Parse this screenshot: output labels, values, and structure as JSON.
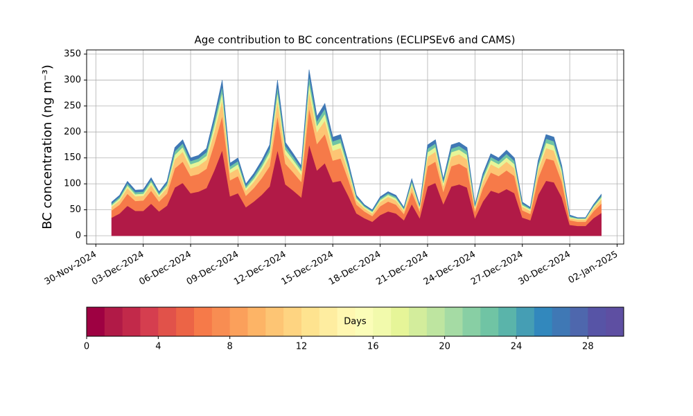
{
  "chart_data": {
    "type": "stacked_area",
    "title": "Age contribution to BC concentrations (ECLIPSEv6 and CAMS)",
    "y_label": "BC concentration (ng m⁻³)",
    "x": [
      "2024-12-01T00:00",
      "2024-12-01T12:00",
      "2024-12-02T00:00",
      "2024-12-02T12:00",
      "2024-12-03T00:00",
      "2024-12-03T12:00",
      "2024-12-04T00:00",
      "2024-12-04T12:00",
      "2024-12-05T00:00",
      "2024-12-05T12:00",
      "2024-12-06T00:00",
      "2024-12-06T12:00",
      "2024-12-07T00:00",
      "2024-12-07T12:00",
      "2024-12-08T00:00",
      "2024-12-08T12:00",
      "2024-12-09T00:00",
      "2024-12-09T12:00",
      "2024-12-10T00:00",
      "2024-12-10T12:00",
      "2024-12-11T00:00",
      "2024-12-11T12:00",
      "2024-12-12T00:00",
      "2024-12-12T12:00",
      "2024-12-13T00:00",
      "2024-12-13T12:00",
      "2024-12-14T00:00",
      "2024-12-14T12:00",
      "2024-12-15T00:00",
      "2024-12-15T12:00",
      "2024-12-16T00:00",
      "2024-12-16T12:00",
      "2024-12-17T00:00",
      "2024-12-17T12:00",
      "2024-12-18T00:00",
      "2024-12-18T12:00",
      "2024-12-19T00:00",
      "2024-12-19T12:00",
      "2024-12-20T00:00",
      "2024-12-20T12:00",
      "2024-12-21T00:00",
      "2024-12-21T12:00",
      "2024-12-22T00:00",
      "2024-12-22T12:00",
      "2024-12-23T00:00",
      "2024-12-23T12:00",
      "2024-12-24T00:00",
      "2024-12-24T12:00",
      "2024-12-25T00:00",
      "2024-12-25T12:00",
      "2024-12-26T00:00",
      "2024-12-26T12:00",
      "2024-12-27T00:00",
      "2024-12-27T12:00",
      "2024-12-28T00:00",
      "2024-12-28T12:00",
      "2024-12-29T00:00",
      "2024-12-29T12:00",
      "2024-12-30T00:00",
      "2024-12-30T12:00",
      "2024-12-31T00:00",
      "2024-12-31T12:00",
      "2025-01-01T00:00"
    ],
    "series": [
      {
        "color": "#b11a47",
        "values": [
          35,
          43,
          58,
          48,
          48,
          62,
          47,
          58,
          93,
          102,
          82,
          85,
          92,
          126,
          165,
          76,
          82,
          55,
          66,
          79,
          95,
          165,
          99,
          87,
          74,
          176,
          126,
          140,
          103,
          106,
          76,
          43,
          34,
          27,
          40,
          47,
          43,
          30,
          61,
          34,
          95,
          102,
          61,
          95,
          99,
          93,
          34,
          66,
          87,
          82,
          90,
          82,
          35,
          30,
          79,
          106,
          103,
          74,
          21,
          19,
          19,
          34,
          44
        ]
      },
      {
        "color": "#f67a49",
        "values": [
          14,
          17,
          23,
          19,
          20,
          25,
          19,
          23,
          37,
          41,
          33,
          34,
          37,
          51,
          66,
          31,
          33,
          22,
          26,
          32,
          39,
          66,
          40,
          35,
          30,
          70,
          51,
          56,
          42,
          43,
          31,
          17,
          13,
          11,
          17,
          19,
          17,
          12,
          24,
          13,
          39,
          41,
          24,
          39,
          40,
          37,
          13,
          26,
          35,
          33,
          36,
          33,
          14,
          12,
          32,
          43,
          42,
          30,
          9,
          8,
          8,
          13,
          18
        ]
      },
      {
        "color": "#fdc574",
        "values": [
          7,
          8,
          11,
          9,
          9,
          11,
          9,
          11,
          17,
          19,
          15,
          16,
          17,
          23,
          30,
          14,
          15,
          10,
          12,
          15,
          18,
          30,
          18,
          16,
          14,
          32,
          23,
          26,
          19,
          20,
          14,
          8,
          6,
          5,
          8,
          9,
          8,
          6,
          11,
          6,
          18,
          19,
          11,
          18,
          18,
          17,
          6,
          12,
          16,
          15,
          17,
          15,
          7,
          6,
          15,
          20,
          19,
          14,
          4,
          4,
          4,
          6,
          8
        ]
      },
      {
        "color": "#e6f598",
        "values": [
          3,
          4,
          5,
          4,
          4,
          6,
          4,
          5,
          9,
          9,
          8,
          8,
          8,
          12,
          15,
          7,
          8,
          5,
          6,
          7,
          9,
          15,
          9,
          8,
          7,
          16,
          12,
          13,
          10,
          10,
          7,
          4,
          3,
          3,
          4,
          4,
          4,
          3,
          6,
          3,
          9,
          9,
          6,
          9,
          9,
          9,
          3,
          6,
          8,
          8,
          8,
          8,
          3,
          3,
          7,
          10,
          10,
          7,
          2,
          2,
          2,
          3,
          4
        ]
      },
      {
        "color": "#70c4a4",
        "values": [
          3,
          3,
          4,
          4,
          4,
          4,
          3,
          4,
          7,
          7,
          6,
          6,
          7,
          9,
          12,
          6,
          6,
          4,
          5,
          6,
          7,
          12,
          7,
          6,
          5,
          13,
          9,
          10,
          8,
          8,
          6,
          3,
          2,
          2,
          3,
          3,
          3,
          2,
          4,
          2,
          7,
          7,
          4,
          7,
          7,
          7,
          2,
          5,
          6,
          6,
          7,
          6,
          3,
          2,
          6,
          8,
          8,
          5,
          2,
          1,
          1,
          2,
          3
        ]
      },
      {
        "color": "#3f78b5",
        "values": [
          3,
          3,
          4,
          4,
          4,
          4,
          3,
          4,
          7,
          7,
          6,
          6,
          7,
          9,
          12,
          6,
          6,
          4,
          5,
          6,
          7,
          12,
          7,
          6,
          5,
          13,
          9,
          10,
          8,
          8,
          6,
          3,
          2,
          2,
          3,
          3,
          3,
          2,
          4,
          2,
          7,
          7,
          4,
          7,
          7,
          7,
          2,
          5,
          6,
          6,
          7,
          6,
          3,
          2,
          6,
          8,
          8,
          5,
          2,
          1,
          1,
          2,
          3
        ]
      }
    ],
    "xlim": [
      "2024-11-29T10:00",
      "2025-01-02T10:00"
    ],
    "xticks": [
      {
        "value": "2024-11-30T00:00",
        "label": "30-Nov-2024"
      },
      {
        "value": "2024-12-03T00:00",
        "label": "03-Dec-2024"
      },
      {
        "value": "2024-12-06T00:00",
        "label": "06-Dec-2024"
      },
      {
        "value": "2024-12-09T00:00",
        "label": "09-Dec-2024"
      },
      {
        "value": "2024-12-12T00:00",
        "label": "12-Dec-2024"
      },
      {
        "value": "2024-12-15T00:00",
        "label": "15-Dec-2024"
      },
      {
        "value": "2024-12-18T00:00",
        "label": "18-Dec-2024"
      },
      {
        "value": "2024-12-21T00:00",
        "label": "21-Dec-2024"
      },
      {
        "value": "2024-12-24T00:00",
        "label": "24-Dec-2024"
      },
      {
        "value": "2024-12-27T00:00",
        "label": "27-Dec-2024"
      },
      {
        "value": "2024-12-30T00:00",
        "label": "30-Dec-2024"
      },
      {
        "value": "2025-01-02T00:00",
        "label": "02-Jan-2025"
      }
    ],
    "ylim": [
      -16,
      358
    ],
    "yticks": [
      0,
      50,
      100,
      150,
      200,
      250,
      300,
      350
    ],
    "grid": true,
    "colorbar": {
      "label": "Days",
      "lim": [
        0,
        30
      ],
      "ticks": [
        0,
        4,
        8,
        12,
        16,
        20,
        24,
        28
      ],
      "bounds": [
        0,
        1,
        2,
        3,
        4,
        5,
        6,
        7,
        8,
        9,
        10,
        11,
        12,
        13,
        14,
        15,
        16,
        17,
        18,
        19,
        20,
        21,
        22,
        23,
        24,
        25,
        26,
        27,
        28,
        29,
        30
      ],
      "colors": [
        "#9e0142",
        "#b11a47",
        "#c2294a",
        "#d53e4f",
        "#e1524a",
        "#ec6446",
        "#f67a49",
        "#f88d52",
        "#fba05b",
        "#fdb466",
        "#fdc574",
        "#fed481",
        "#fee38f",
        "#feeda0",
        "#fff7b1",
        "#fbfdb8",
        "#f2faac",
        "#e6f598",
        "#d3ed9c",
        "#bee5a0",
        "#a5dba4",
        "#88cfa4",
        "#70c4a4",
        "#5ab4aa",
        "#459eb4",
        "#3288bd",
        "#3f78b5",
        "#4e67ad",
        "#5754a6",
        "#5e4fa2"
      ]
    }
  }
}
